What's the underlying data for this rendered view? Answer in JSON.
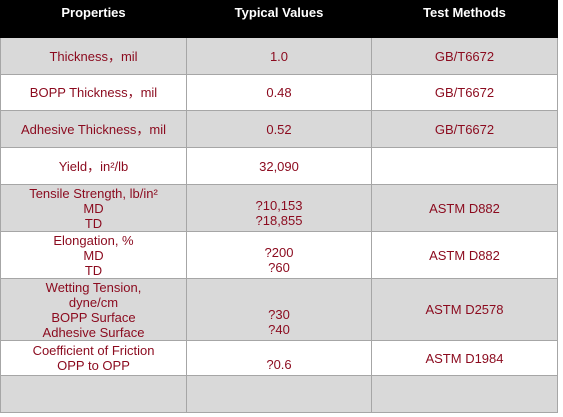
{
  "table": {
    "header": [
      "Properties",
      "Typical Values",
      "Test Methods"
    ],
    "rows": [
      [
        [
          "Thickness，mil"
        ],
        [
          "1.0"
        ],
        [
          "GB/T6672"
        ]
      ],
      [
        [
          "BOPP Thickness，mil"
        ],
        [
          "0.48"
        ],
        [
          "GB/T6672"
        ]
      ],
      [
        [
          "Adhesive Thickness，mil"
        ],
        [
          "0.52"
        ],
        [
          "GB/T6672"
        ]
      ],
      [
        [
          "Yield，in²/lb"
        ],
        [
          "32,090"
        ],
        []
      ],
      [
        [
          "Tensile Strength, lb/in²",
          "MD",
          "TD"
        ],
        [
          "?10,153",
          "?18,855"
        ],
        [
          "ASTM D882"
        ]
      ],
      [
        [
          "Elongation, %",
          "MD",
          "TD"
        ],
        [
          "?200",
          "?60"
        ],
        [
          "ASTM D882"
        ]
      ],
      [
        [
          "Wetting Tension,",
          "dyne/cm",
          "BOPP Surface",
          "Adhesive Surface"
        ],
        [
          "?30",
          "?40"
        ],
        [
          "ASTM D2578"
        ]
      ],
      [
        [
          "Coefficient of Friction",
          "OPP to OPP"
        ],
        [
          "?0.6"
        ],
        [
          "ASTM D1984"
        ]
      ],
      [
        [],
        [],
        []
      ]
    ]
  }
}
